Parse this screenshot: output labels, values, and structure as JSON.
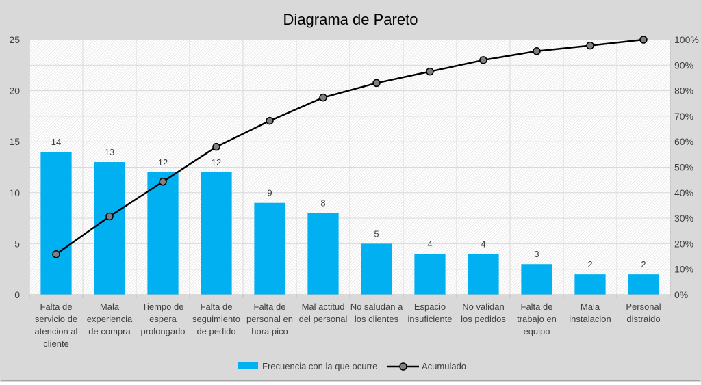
{
  "chart_data": {
    "type": "bar",
    "title": "Diagrama de Pareto",
    "categories": [
      "Falta de servicio de atencion al cliente",
      "Mala experiencia de compra",
      "Tiempo de espera prolongado",
      "Falta de seguimiento de pedido",
      "Falta de personal en hora pico",
      "Mal actitud del personal",
      "No saludan a los clientes",
      "Espacio insuficiente",
      "No validan los pedidos",
      "Falta de trabajo en equipo",
      "Mala instalacion",
      "Personal distraido"
    ],
    "category_lines": [
      [
        "Falta de",
        "servicio de",
        "atencion al",
        "cliente"
      ],
      [
        "Mala",
        "experiencia",
        "de compra"
      ],
      [
        "Tiempo de",
        "espera",
        "prolongado"
      ],
      [
        "Falta de",
        "seguimiento",
        "de pedido"
      ],
      [
        "Falta de",
        "personal en",
        "hora pico"
      ],
      [
        "Mal actitud",
        "del personal"
      ],
      [
        "No saludan a",
        "los clientes"
      ],
      [
        "Espacio",
        "insuficiente"
      ],
      [
        "No validan",
        "los pedidos"
      ],
      [
        "Falta de",
        "trabajo en",
        "equipo"
      ],
      [
        "Mala",
        "instalacion"
      ],
      [
        "Personal",
        "distraido"
      ]
    ],
    "series": [
      {
        "name": "Frecuencia con la que ocurre",
        "type": "bar",
        "axis": "left",
        "color": "#00B0F0",
        "values": [
          14,
          13,
          12,
          12,
          9,
          8,
          5,
          4,
          4,
          3,
          2,
          2
        ],
        "data_labels": true
      },
      {
        "name": "Acumulado",
        "type": "line",
        "axis": "right",
        "color": "#000000",
        "marker_color": "#808080",
        "values": [
          15.9,
          30.7,
          44.3,
          58.0,
          68.2,
          77.3,
          83.0,
          87.5,
          92.0,
          95.5,
          97.7,
          100.0
        ]
      }
    ],
    "y_left": {
      "min": 0,
      "max": 25,
      "ticks": [
        0,
        5,
        10,
        15,
        20,
        25
      ]
    },
    "y_right": {
      "min": 0,
      "max": 100,
      "ticks": [
        0,
        10,
        20,
        30,
        40,
        50,
        60,
        70,
        80,
        90,
        100
      ],
      "format": "percent"
    },
    "grid": true,
    "legend_position": "bottom",
    "colors": {
      "background": "#D9D9D9",
      "plot_background": "#FFFFFF",
      "grid": "#D9D9D9"
    }
  }
}
